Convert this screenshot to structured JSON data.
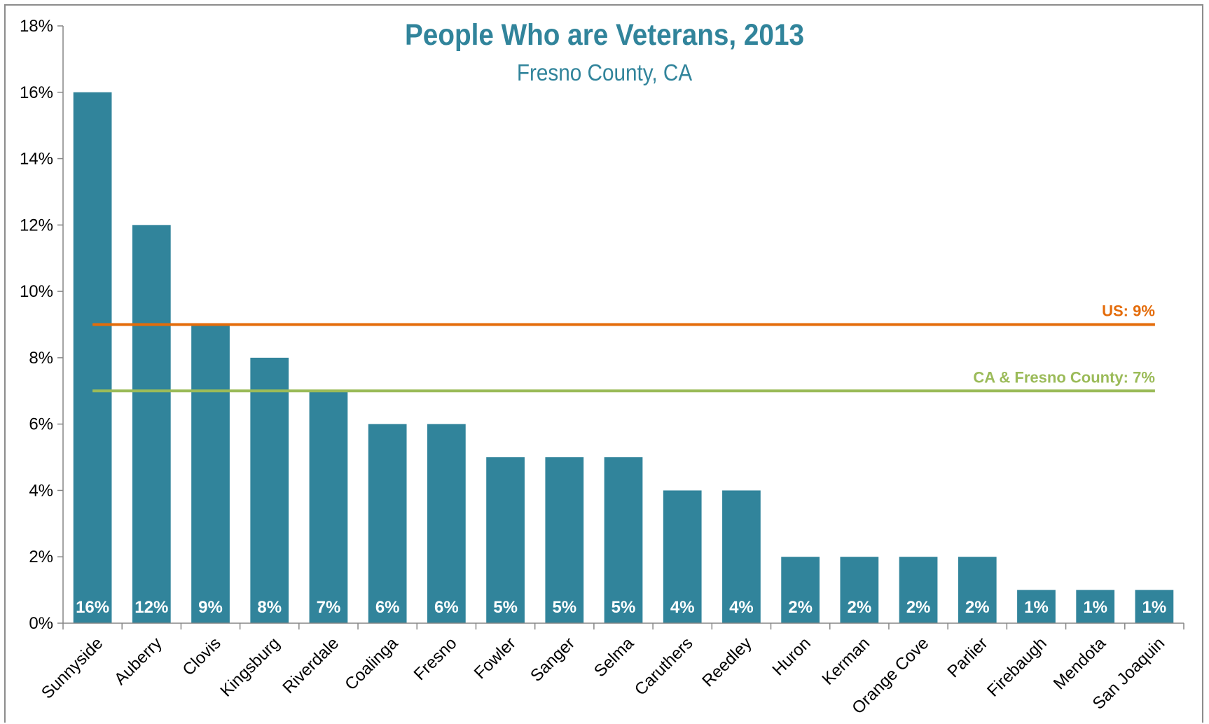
{
  "chart_data": {
    "type": "bar",
    "title": "People Who are Veterans, 2013",
    "subtitle": "Fresno County, CA",
    "xlabel": "",
    "ylabel": "",
    "ylim": [
      0,
      18
    ],
    "y_ticks": [
      "0%",
      "2%",
      "4%",
      "6%",
      "8%",
      "10%",
      "12%",
      "14%",
      "16%",
      "18%"
    ],
    "categories": [
      "Sunnyside",
      "Auberry",
      "Clovis",
      "Kingsburg",
      "Riverdale",
      "Coalinga",
      "Fresno",
      "Fowler",
      "Sanger",
      "Selma",
      "Caruthers",
      "Reedley",
      "Huron",
      "Kerman",
      "Orange Cove",
      "Parlier",
      "Firebaugh",
      "Mendota",
      "San Joaquin"
    ],
    "values": [
      16,
      12,
      9,
      8,
      7,
      6,
      6,
      5,
      5,
      5,
      4,
      4,
      2,
      2,
      2,
      2,
      1,
      1,
      1
    ],
    "data_labels": [
      "16%",
      "12%",
      "9%",
      "8%",
      "7%",
      "6%",
      "6%",
      "5%",
      "5%",
      "5%",
      "4%",
      "4%",
      "2%",
      "2%",
      "2%",
      "2%",
      "1%",
      "1%",
      "1%"
    ],
    "bar_color": "#31849b",
    "grid": false,
    "reference_lines": [
      {
        "label": "US: 9%",
        "value": 9,
        "color": "#e46c0a"
      },
      {
        "label": "CA & Fresno County: 7%",
        "value": 7,
        "color": "#9bbb59"
      }
    ]
  }
}
